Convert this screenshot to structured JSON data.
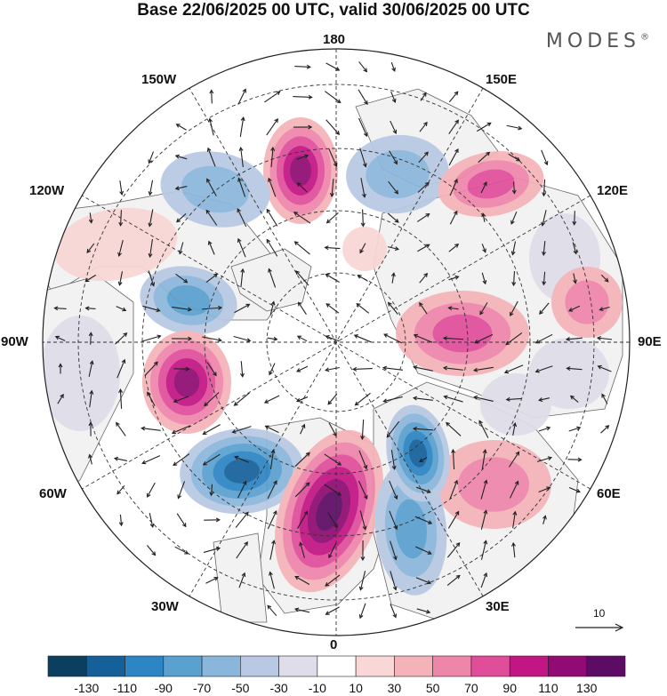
{
  "title": "Base 22/06/2025 00 UTC, valid 30/06/2025 00 UTC",
  "brand": "MODES",
  "brand_mark": "®",
  "map": {
    "projection": "north-polar-stereographic",
    "graticule": "dashed",
    "longitude_labels": {
      "lon_180": "180",
      "lon_150W": "150W",
      "lon_150E": "150E",
      "lon_120W": "120W",
      "lon_120E": "120E",
      "lon_90W": "90W",
      "lon_90E": "90E",
      "lon_60W": "60W",
      "lon_60E": "60E",
      "lon_30W": "30W",
      "lon_30E": "30E",
      "lon_0": "0"
    },
    "reference_vector": "10",
    "colors": {
      "land": "#f2f2f2",
      "coast": "#666666",
      "graticule": "#333333",
      "vector": "#222222"
    },
    "anomaly_centers": [
      {
        "value": 110,
        "region": "north-pacific"
      },
      {
        "value": -50,
        "region": "north-pacific"
      },
      {
        "value": -50,
        "region": "west-pacific"
      },
      {
        "value": 70,
        "region": "east-siberia"
      },
      {
        "value": -30,
        "region": "east-pacific"
      },
      {
        "value": 30,
        "region": "western-north-america"
      },
      {
        "value": -70,
        "region": "canada"
      },
      {
        "value": 110,
        "region": "hudson-bay"
      },
      {
        "value": -30,
        "region": "eastern-canada"
      },
      {
        "value": -110,
        "region": "north-atlantic-west"
      },
      {
        "value": 130,
        "region": "greenland-iceland"
      },
      {
        "value": 50,
        "region": "north-atlantic-east"
      },
      {
        "value": -70,
        "region": "scandinavia"
      },
      {
        "value": -110,
        "region": "eastern-europe"
      },
      {
        "value": 70,
        "region": "western-russia"
      },
      {
        "value": 50,
        "region": "siberia"
      },
      {
        "value": -30,
        "region": "central-asia"
      },
      {
        "value": -30,
        "region": "east-asia"
      },
      {
        "value": 30,
        "region": "chukotka"
      }
    ]
  },
  "colorbar": {
    "ticks": [
      "-130",
      "-110",
      "-90",
      "-70",
      "-50",
      "-30",
      "-10",
      "10",
      "30",
      "50",
      "70",
      "90",
      "110",
      "130"
    ],
    "colors": [
      "#0b3f5f",
      "#16609a",
      "#2d85c3",
      "#5aa1cf",
      "#8bb6db",
      "#b9c9e4",
      "#dedde9",
      "#ffffff",
      "#f8d7d6",
      "#f4b3b9",
      "#ee86aa",
      "#e04e9a",
      "#c21684",
      "#900c74",
      "#5d0c66"
    ]
  }
}
